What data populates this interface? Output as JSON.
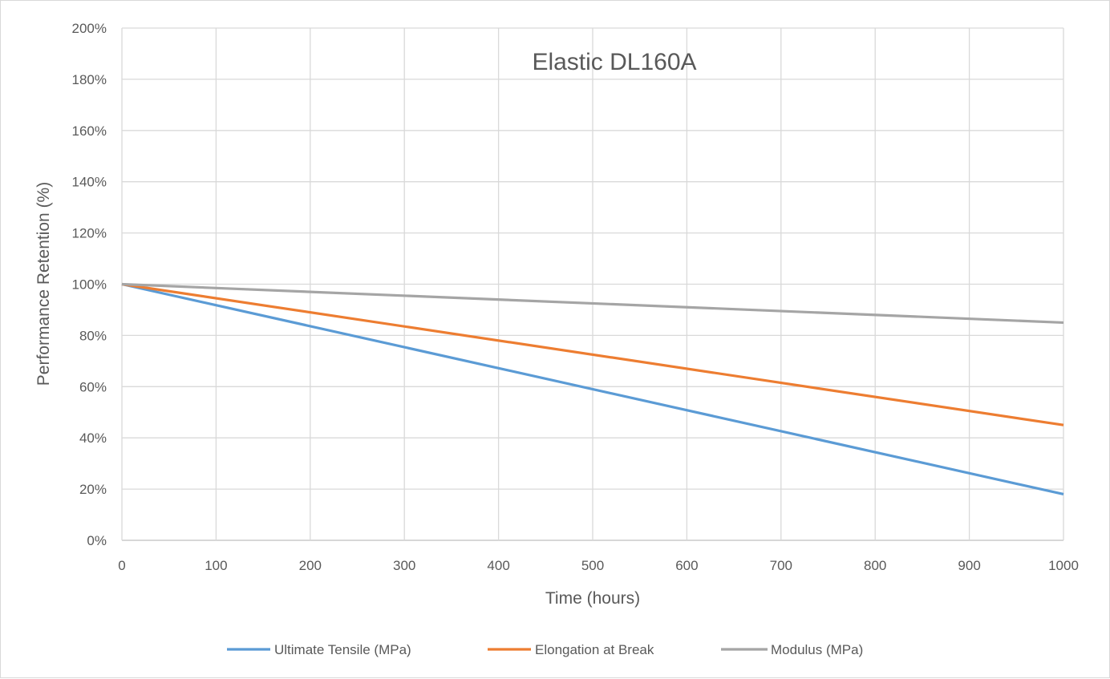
{
  "chart_data": {
    "type": "line",
    "title": "Elastic DL160A",
    "xlabel": "Time (hours)",
    "ylabel": "Performance Retention (%)",
    "xlim": [
      0,
      1000
    ],
    "ylim": [
      0,
      200
    ],
    "x_ticks": [
      0,
      100,
      200,
      300,
      400,
      500,
      600,
      700,
      800,
      900,
      1000
    ],
    "x_tick_labels": [
      "0",
      "100",
      "200",
      "300",
      "400",
      "500",
      "600",
      "700",
      "800",
      "900",
      "1000"
    ],
    "y_ticks": [
      0,
      20,
      40,
      60,
      80,
      100,
      120,
      140,
      160,
      180,
      200
    ],
    "y_tick_labels": [
      "0%",
      "20%",
      "40%",
      "60%",
      "80%",
      "100%",
      "120%",
      "140%",
      "160%",
      "180%",
      "200%"
    ],
    "grid": true,
    "legend_position": "bottom",
    "series": [
      {
        "name": "Ultimate Tensile (MPa)",
        "color": "#5B9BD5",
        "x": [
          0,
          1000
        ],
        "y": [
          100,
          18
        ]
      },
      {
        "name": "Elongation at Break",
        "color": "#ED7D31",
        "x": [
          0,
          1000
        ],
        "y": [
          100,
          45
        ]
      },
      {
        "name": "Modulus (MPa)",
        "color": "#A5A5A5",
        "x": [
          0,
          1000
        ],
        "y": [
          100,
          85
        ]
      }
    ]
  }
}
